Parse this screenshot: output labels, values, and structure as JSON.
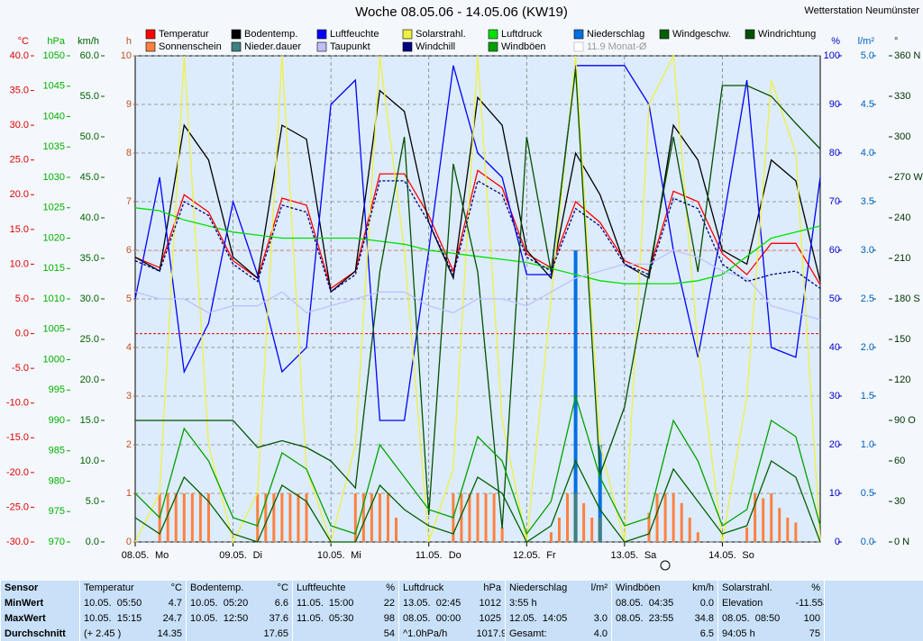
{
  "chart_data": {
    "type": "line",
    "title": "Woche 08.05.06 - 14.05.06 (KW19)",
    "station": "Wetterstation Neumünster",
    "x": [
      0,
      6,
      12,
      18,
      24,
      30,
      36,
      42,
      48,
      54,
      60,
      66,
      72,
      78,
      84,
      90,
      96,
      102,
      108,
      114,
      120,
      126,
      132,
      138,
      144,
      150,
      156,
      162,
      168
    ],
    "xlim": [
      0,
      168
    ],
    "xticks": [
      {
        "value": 0,
        "label": "08.05."
      },
      {
        "value": 24,
        "label": "09.05."
      },
      {
        "value": 48,
        "label": "10.05."
      },
      {
        "value": 72,
        "label": "11.05."
      },
      {
        "value": 96,
        "label": "12.05."
      },
      {
        "value": 120,
        "label": "13.05."
      },
      {
        "value": 144,
        "label": "14.05."
      }
    ],
    "weekdays": [
      "Mo",
      "Di",
      "Mi",
      "Do",
      "Fr",
      "Sa",
      "So"
    ],
    "grid": true,
    "axes": {
      "temp": {
        "unit": "°C",
        "color": "#e00000",
        "side": "left",
        "pos": 0,
        "lim": [
          -30,
          40
        ],
        "ticks": [
          {
            "value": 40,
            "label": "40.0"
          },
          {
            "value": 35,
            "label": "35.0"
          },
          {
            "value": 30,
            "label": "30.0"
          },
          {
            "value": 25,
            "label": "25.0"
          },
          {
            "value": 20,
            "label": "20.0"
          },
          {
            "value": 15,
            "label": "15.0"
          },
          {
            "value": 10,
            "label": "10.0"
          },
          {
            "value": 5,
            "label": "5.0"
          },
          {
            "value": 0,
            "label": "0.0"
          },
          {
            "value": -5,
            "label": "-5.0"
          },
          {
            "value": -10,
            "label": "-10.0"
          },
          {
            "value": -15,
            "label": "-15.0"
          },
          {
            "value": -20,
            "label": "-20.0"
          },
          {
            "value": -25,
            "label": "-25.0"
          },
          {
            "value": -30,
            "label": "-30.0"
          }
        ]
      },
      "hpa": {
        "unit": "hPa",
        "color": "#00b000",
        "side": "left",
        "pos": 1,
        "lim": [
          970,
          1050
        ],
        "ticks": [
          1050,
          1045,
          1040,
          1035,
          1030,
          1025,
          1020,
          1015,
          1010,
          1005,
          1000,
          995,
          990,
          985,
          980,
          975,
          970
        ]
      },
      "kmh": {
        "unit": "km/h",
        "color": "#006000",
        "side": "left",
        "pos": 2,
        "lim": [
          0,
          60
        ],
        "ticks": [
          {
            "value": 60,
            "label": "60.0"
          },
          {
            "value": 55,
            "label": "55.0"
          },
          {
            "value": 50,
            "label": "50.0"
          },
          {
            "value": 45,
            "label": "45.0"
          },
          {
            "value": 40,
            "label": "40.0"
          },
          {
            "value": 35,
            "label": "35.0"
          },
          {
            "value": 30,
            "label": "30.0"
          },
          {
            "value": 25,
            "label": "25.0"
          },
          {
            "value": 20,
            "label": "20.0"
          },
          {
            "value": 15,
            "label": "15.0"
          },
          {
            "value": 10,
            "label": "10.0"
          },
          {
            "value": 5,
            "label": "5.0"
          },
          {
            "value": 0,
            "label": "0.0"
          }
        ]
      },
      "h": {
        "unit": "h",
        "color": "#c05020",
        "side": "left",
        "pos": 3,
        "lim": [
          0,
          10
        ],
        "ticks": [
          10,
          9,
          8,
          7,
          6,
          5,
          4,
          3,
          2,
          1,
          0
        ]
      },
      "pct": {
        "unit": "%",
        "color": "#0000d0",
        "side": "right",
        "pos": 0,
        "lim": [
          0,
          100
        ],
        "ticks": [
          100,
          90,
          80,
          70,
          60,
          50,
          40,
          30,
          20,
          10,
          0
        ]
      },
      "lm2": {
        "unit": "l/m²",
        "color": "#0060c0",
        "side": "right",
        "pos": 1,
        "lim": [
          0,
          5
        ],
        "ticks": [
          {
            "value": 5,
            "label": "5.0"
          },
          4.5,
          {
            "value": 4,
            "label": "4.0"
          },
          3.5,
          {
            "value": 3,
            "label": "3.0"
          },
          2.5,
          {
            "value": 2,
            "label": "2.0"
          },
          1.5,
          {
            "value": 1,
            "label": "1.0"
          },
          0.5,
          {
            "value": 0,
            "label": "0.0"
          }
        ]
      },
      "deg": {
        "unit": "°",
        "color": "#003000",
        "side": "right",
        "pos": 2,
        "lim": [
          0,
          360
        ],
        "ticks": [
          {
            "value": 360,
            "label": "360 N"
          },
          330,
          300,
          {
            "value": 270,
            "label": "270 W"
          },
          240,
          210,
          {
            "value": 180,
            "label": "180 S"
          },
          150,
          120,
          {
            "value": 90,
            "label": "90 O"
          },
          60,
          30,
          {
            "value": 0,
            "label": "0 N"
          }
        ]
      }
    },
    "series": [
      {
        "name": "Temperatur",
        "color": "#ff0000",
        "axis": "temp",
        "style": "line",
        "values": [
          11,
          9.5,
          20,
          17.5,
          10.5,
          8,
          19.5,
          18.5,
          6.5,
          9,
          23,
          23,
          17,
          9,
          23.5,
          21,
          11.5,
          9.5,
          19,
          16,
          10.5,
          9,
          20.5,
          19,
          11.5,
          8.5,
          13,
          13,
          7
        ]
      },
      {
        "name": "Bodentemp.",
        "color": "#000000",
        "axis": "temp",
        "style": "line",
        "values": [
          11,
          9,
          30,
          25,
          11,
          8,
          30,
          28,
          6,
          9,
          35,
          32,
          16,
          8,
          34,
          30,
          12,
          8,
          26,
          20,
          10,
          8,
          30,
          25,
          12,
          10,
          25,
          22,
          7.5
        ]
      },
      {
        "name": "Luftfeuchte",
        "color": "#0000ff",
        "axis": "pct",
        "style": "line",
        "values": [
          50,
          75,
          35,
          45,
          70,
          55,
          35,
          40,
          90,
          95,
          25,
          25,
          60,
          98,
          80,
          75,
          55,
          55,
          98,
          98,
          98,
          90,
          60,
          38,
          65,
          95,
          40,
          38,
          75
        ]
      },
      {
        "name": "Solarstrahl.",
        "color": "#f0f040",
        "axis": "pct",
        "style": "line",
        "values": [
          0,
          10,
          100,
          20,
          0,
          10,
          100,
          15,
          0,
          20,
          100,
          60,
          0,
          15,
          100,
          25,
          0,
          50,
          100,
          20,
          0,
          90,
          100,
          40,
          0,
          30,
          95,
          80,
          0
        ]
      },
      {
        "name": "Luftdruck",
        "color": "#00e000",
        "axis": "hpa",
        "style": "line",
        "values": [
          1025,
          1024.5,
          1023,
          1022,
          1021,
          1020.5,
          1020,
          1020,
          1020,
          1020,
          1019.5,
          1019,
          1018,
          1017.5,
          1017,
          1016.5,
          1016,
          1015,
          1014,
          1013,
          1012.5,
          1012.5,
          1012.5,
          1013,
          1014,
          1017,
          1020,
          1021,
          1022
        ]
      },
      {
        "name": "Niederschlag",
        "color": "#0070e0",
        "axis": "lm2",
        "style": "bar",
        "values": [
          0,
          0,
          0,
          0,
          0,
          0,
          0,
          0,
          0,
          0,
          0,
          0,
          0,
          0,
          0,
          0,
          0,
          0,
          3.0,
          1.0,
          0,
          0,
          0,
          0,
          0,
          0,
          0,
          0,
          0
        ]
      },
      {
        "name": "Windgeschw.",
        "color": "#006000",
        "axis": "kmh",
        "style": "line",
        "values": [
          3,
          1,
          8,
          5,
          1,
          0,
          7,
          5,
          0,
          0,
          7,
          4,
          2,
          1,
          8,
          6,
          0,
          2,
          10,
          4,
          0,
          1,
          9,
          5,
          1,
          2,
          10,
          8,
          0
        ]
      },
      {
        "name": "Windrichtung",
        "color": "#005000",
        "axis": "deg",
        "style": "line",
        "values": [
          90,
          90,
          90,
          90,
          90,
          70,
          75,
          70,
          60,
          40,
          200,
          300,
          20,
          280,
          200,
          10,
          300,
          200,
          350,
          50,
          100,
          200,
          300,
          200,
          338,
          338,
          330,
          310,
          291
        ]
      },
      {
        "name": "Sonnenschein",
        "color": "#ff8040",
        "axis": "h",
        "style": "bar",
        "x": [
          0,
          2,
          4,
          6,
          8,
          10,
          12,
          14,
          16,
          18,
          20,
          22,
          24,
          26,
          28,
          30,
          32,
          34,
          36,
          38,
          40,
          42,
          44,
          46,
          48,
          50,
          52,
          54,
          56,
          58,
          60,
          62,
          64,
          66,
          68,
          70,
          72,
          74,
          76,
          78,
          80,
          82,
          84,
          86,
          88,
          90,
          92,
          94,
          96,
          98,
          100,
          102,
          104,
          106,
          108,
          110,
          112,
          114,
          116,
          118,
          120,
          122,
          124,
          126,
          128,
          130,
          132,
          134,
          136,
          138,
          140,
          142,
          144,
          146,
          148,
          150,
          152,
          154,
          156,
          158,
          160,
          162,
          164,
          166
        ],
        "values": [
          0,
          0,
          0,
          1,
          1,
          1,
          1,
          1,
          1,
          1,
          0,
          0,
          0,
          0,
          0,
          1,
          1,
          1,
          1,
          1,
          1,
          1,
          0,
          0,
          0,
          0,
          0,
          1,
          1,
          1,
          1,
          1,
          0.5,
          0,
          0,
          0,
          0,
          0,
          0,
          1,
          1,
          1,
          1,
          1,
          1,
          0.3,
          0,
          0,
          0,
          0,
          0,
          0.2,
          0.5,
          1,
          0.3,
          0.8,
          0.5,
          0.1,
          0,
          0,
          0,
          0,
          0,
          0.6,
          1,
          1,
          1,
          0.8,
          0.5,
          0.2,
          0,
          0,
          0,
          0,
          0,
          0.3,
          1,
          0.9,
          1,
          0.7,
          0.5,
          0.4,
          0,
          0
        ]
      },
      {
        "name": "Nieder.dauer",
        "color": "#408080",
        "axis": "h",
        "style": "bar",
        "values": [
          0,
          0,
          0,
          0,
          0,
          0,
          0,
          0,
          0,
          0,
          0,
          0,
          0,
          0,
          0,
          0,
          0,
          0,
          1,
          0.5,
          0,
          0,
          0,
          0,
          0,
          0,
          0,
          0,
          0
        ]
      },
      {
        "name": "Taupunkt",
        "color": "#c0c0ff",
        "axis": "temp",
        "style": "line",
        "values": [
          6,
          5,
          5,
          3,
          4,
          4,
          6,
          3,
          4,
          5,
          6,
          6,
          4,
          3,
          5,
          5,
          4,
          6,
          8,
          9,
          10,
          10,
          12,
          11,
          9,
          8,
          4,
          3,
          2
        ]
      },
      {
        "name": "Windchill",
        "color": "#000080",
        "axis": "temp",
        "style": "dashed",
        "values": [
          10.5,
          9,
          19,
          17,
          10,
          7.5,
          18.5,
          17.5,
          6,
          8.5,
          22,
          22,
          16,
          8.5,
          22,
          20,
          11,
          9,
          18,
          15.5,
          10,
          8.5,
          19.5,
          18,
          10,
          7.5,
          8.5,
          9,
          6.5
        ]
      },
      {
        "name": "Windböen",
        "color": "#00a000",
        "axis": "kmh",
        "style": "line",
        "values": [
          6,
          3,
          14,
          10,
          3,
          2,
          11,
          9,
          2,
          1,
          12,
          8,
          4,
          3,
          13,
          10,
          1,
          5,
          18,
          8,
          2,
          3,
          15,
          10,
          2,
          4,
          15,
          13,
          2
        ]
      },
      {
        "name": "11.9 Monat-Ø",
        "color": "#ffb0b0",
        "axis": "temp",
        "style": "reference",
        "value": 11.9
      }
    ]
  },
  "table": {
    "header": [
      "Sensor",
      "Temperatur",
      "°C",
      "Bodentemp.",
      "°C",
      "Luftfeuchte",
      "%",
      "Luftdruck",
      "hPa",
      "Niederschlag",
      "l/m²",
      "Windböen",
      "km/h",
      "Solarstrahl.",
      "%"
    ],
    "rows": [
      [
        "MinWert",
        "10.05.  05:50",
        "4.7",
        "10.05.  05:20",
        "6.6",
        "11.05.  15:00",
        "22",
        "13.05.  02:45",
        "1012",
        "3:55 h",
        null,
        "08.05.  04:35",
        "0.0",
        "Elevation",
        "-11.553"
      ],
      [
        "MaxWert",
        "10.05.  15:15",
        "24.7",
        "10.05.  12:50",
        "37.6",
        "11.05.  05:30",
        "98",
        "08.05.  00:00",
        "1025",
        "12.05.  14:05",
        "3.0",
        "08.05.  23:55",
        "34.8",
        "08.05.  08:50",
        "100"
      ],
      [
        "Durchschnitt",
        "(+ 2.45 )",
        "14.35",
        null,
        "17.65",
        null,
        "54",
        "^1.0hPa/h",
        "1017.9",
        "Gesamt:",
        "4.0",
        null,
        "6.5",
        "94:05 h",
        "75"
      ]
    ]
  }
}
